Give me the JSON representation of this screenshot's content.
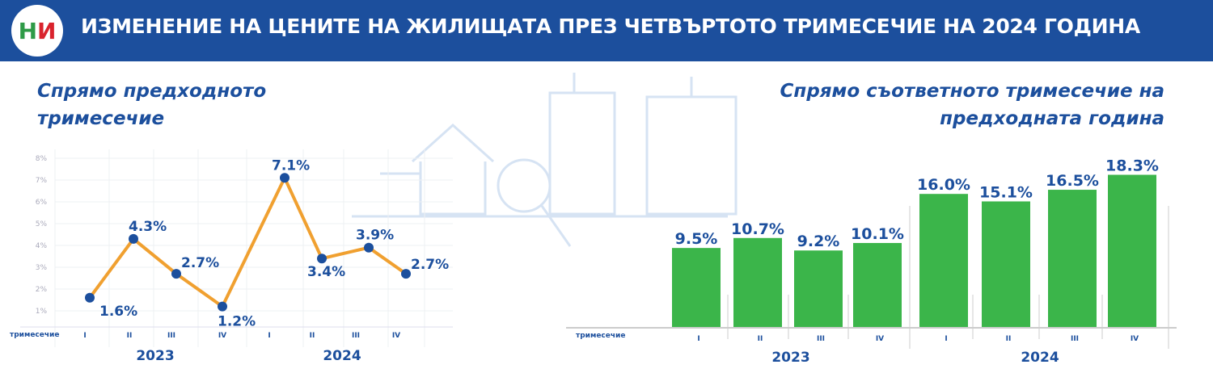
{
  "header": {
    "title": "ИЗМЕНЕНИЕ НА ЦЕНИТЕ НА ЖИЛИЩАТА ПРЕЗ ЧЕТВЪРТОТО ТРИМЕСЕЧИЕ НА 2024 ГОДИНА",
    "logo_text": "НИ"
  },
  "colors": {
    "header": "#1c4f9d",
    "line": "#f0a030",
    "points": "#1c4f9d",
    "bars": "#3bb54a",
    "text": "#1c4f9d"
  },
  "chart_data": [
    {
      "type": "line",
      "title": "Спрямо предходното тримесечие",
      "xlabel": "тримесечие",
      "categories": [
        "I",
        "II",
        "III",
        "IV",
        "I",
        "II",
        "III",
        "IV"
      ],
      "years": [
        "2023",
        "2024"
      ],
      "values": [
        1.6,
        4.3,
        2.7,
        1.2,
        7.1,
        3.4,
        3.9,
        2.7
      ],
      "labels": [
        "1.6%",
        "4.3%",
        "2.7%",
        "1.2%",
        "7.1%",
        "3.4%",
        "3.9%",
        "2.7%"
      ],
      "yticks": [
        "1%",
        "2%",
        "3%",
        "4%",
        "5%",
        "6%",
        "7%",
        "8%"
      ],
      "ylim": [
        0,
        8
      ],
      "grid": true
    },
    {
      "type": "bar",
      "title": "Спрямо съответното тримесечие на предходната година",
      "xlabel": "тримесечие",
      "categories": [
        "I",
        "II",
        "III",
        "IV",
        "I",
        "II",
        "III",
        "IV"
      ],
      "years": [
        "2023",
        "2024"
      ],
      "values": [
        9.5,
        10.7,
        9.2,
        10.1,
        16.0,
        15.1,
        16.5,
        18.3
      ],
      "labels": [
        "9.5%",
        "10.7%",
        "9.2%",
        "10.1%",
        "16.0%",
        "15.1%",
        "16.5%",
        "18.3%"
      ]
    }
  ]
}
